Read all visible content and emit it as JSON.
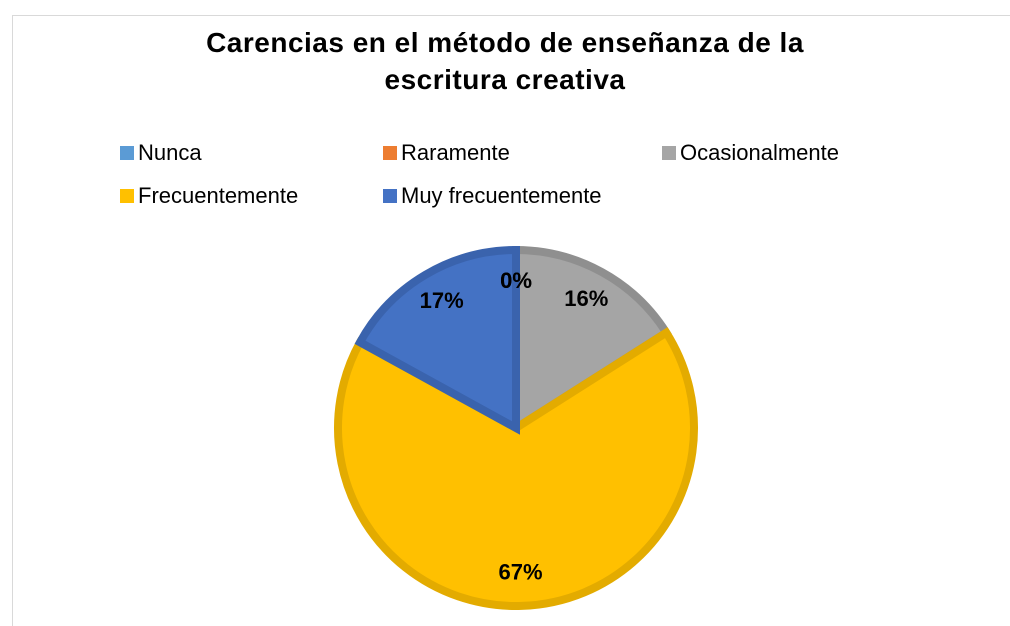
{
  "chart_data": {
    "type": "pie",
    "title": "Carencias en el método de enseñanza de la escritura creativa",
    "categories": [
      "Nunca",
      "Raramente",
      "Ocasionalmente",
      "Frecuentemente",
      "Muy frecuentemente"
    ],
    "values": [
      0,
      0,
      16,
      67,
      17
    ],
    "value_labels": [
      "0%",
      "0%",
      "16%",
      "67%",
      "17%"
    ],
    "colors": [
      "#5b9bd5",
      "#ed7d31",
      "#a5a5a5",
      "#ffc000",
      "#4472c4"
    ],
    "border_colors": [
      "#4a86bd",
      "#d46a22",
      "#8f8f8f",
      "#e3ab00",
      "#3a63ad"
    ],
    "legend": "top"
  }
}
